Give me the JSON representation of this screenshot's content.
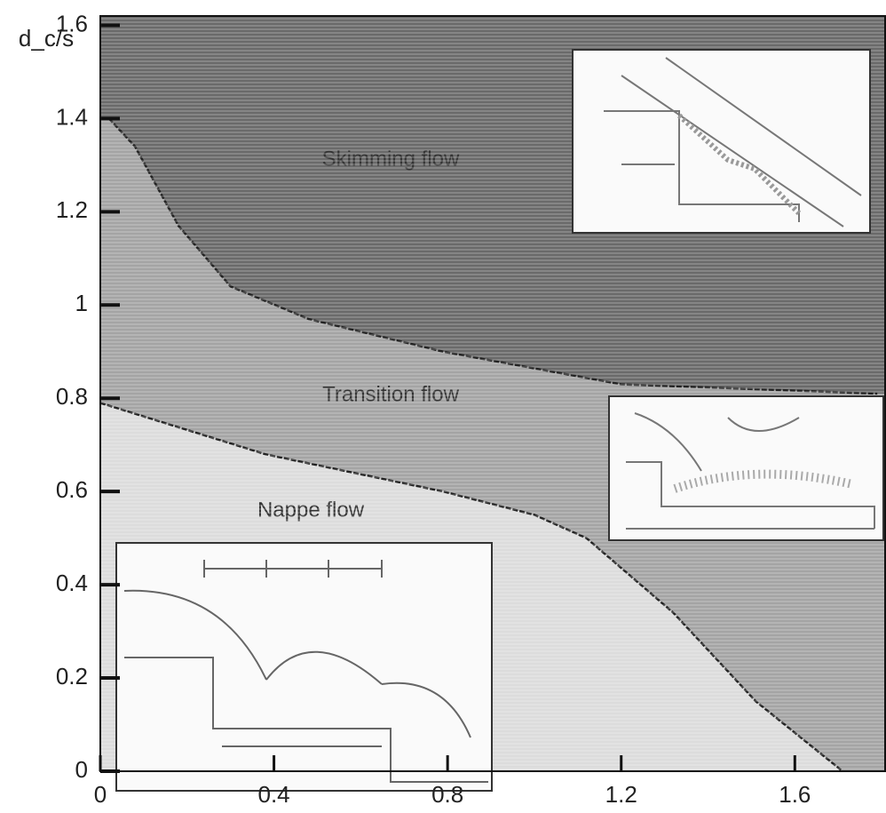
{
  "chart_data": {
    "type": "regime",
    "y_label": "d_c/s",
    "xlim": [
      0,
      1.81
    ],
    "ylim": [
      0,
      1.62
    ],
    "xticks": [
      0,
      0.4,
      0.8,
      1.2,
      1.6
    ],
    "yticks": [
      0,
      0.2,
      0.4,
      0.6,
      0.8,
      1,
      1.2,
      1.4,
      1.6
    ],
    "boundaries": [
      {
        "x": [
          0.02,
          0.08,
          0.18,
          0.3,
          0.48,
          0.79,
          1.2,
          1.79
        ],
        "y": [
          1.4,
          1.34,
          1.17,
          1.04,
          0.97,
          0.9,
          0.83,
          0.81
        ]
      },
      {
        "x": [
          0,
          0.38,
          0.79,
          1.0,
          1.12,
          1.32,
          1.51,
          1.71
        ],
        "y": [
          0.79,
          0.68,
          0.6,
          0.55,
          0.5,
          0.34,
          0.15,
          0
        ]
      }
    ],
    "regions": [
      {
        "label": "Skimming flow",
        "color": "#6a6a6a"
      },
      {
        "label": "Transition flow",
        "color": "#a4a4a4"
      },
      {
        "label": "Nappe flow",
        "color": "#dcdcdc"
      }
    ]
  }
}
